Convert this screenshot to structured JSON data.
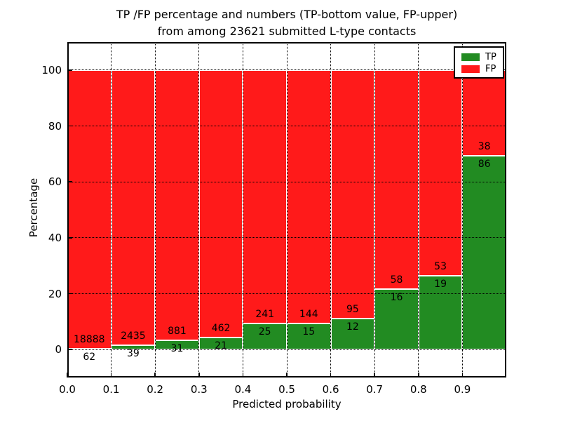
{
  "chart_data": {
    "type": "bar",
    "stacked": true,
    "title_line1": "TP /FP percentage and numbers (TP-bottom value, FP-upper)",
    "title_line2": "from among 23621 submitted L-type contacts",
    "total_contacts": 23621,
    "xlabel": "Predicted probability",
    "ylabel": "Percentage",
    "xlim": [
      0.0,
      1.0
    ],
    "ylim": [
      -10,
      110
    ],
    "bin_width": 0.1,
    "grid": true,
    "legend_position": "upper-right",
    "xtick_labels": [
      "0.0",
      "0.1",
      "0.2",
      "0.3",
      "0.4",
      "0.5",
      "0.6",
      "0.7",
      "0.8",
      "0.9"
    ],
    "xtick_values": [
      0.0,
      0.1,
      0.2,
      0.3,
      0.4,
      0.5,
      0.6,
      0.7,
      0.8,
      0.9
    ],
    "ytick_labels": [
      "0",
      "20",
      "40",
      "60",
      "80",
      "100"
    ],
    "ytick_values": [
      0,
      20,
      40,
      60,
      80,
      100
    ],
    "bin_starts": [
      0.0,
      0.1,
      0.2,
      0.3,
      0.4,
      0.5,
      0.6,
      0.7,
      0.8,
      0.9
    ],
    "series": [
      {
        "name": "TP",
        "color": "#228b22",
        "counts": [
          62,
          39,
          31,
          21,
          25,
          15,
          12,
          16,
          19,
          86
        ]
      },
      {
        "name": "FP",
        "color": "#ff1a1a",
        "counts": [
          18888,
          2435,
          881,
          462,
          241,
          144,
          95,
          58,
          53,
          38
        ]
      }
    ],
    "tp_percent": [
      0.33,
      1.58,
      3.4,
      4.35,
      9.4,
      9.43,
      11.21,
      21.62,
      26.39,
      69.35
    ],
    "colors": {
      "bar_edge": "#ffffff",
      "grid": "#000000",
      "axes": "#000000",
      "background": "#ffffff"
    }
  }
}
